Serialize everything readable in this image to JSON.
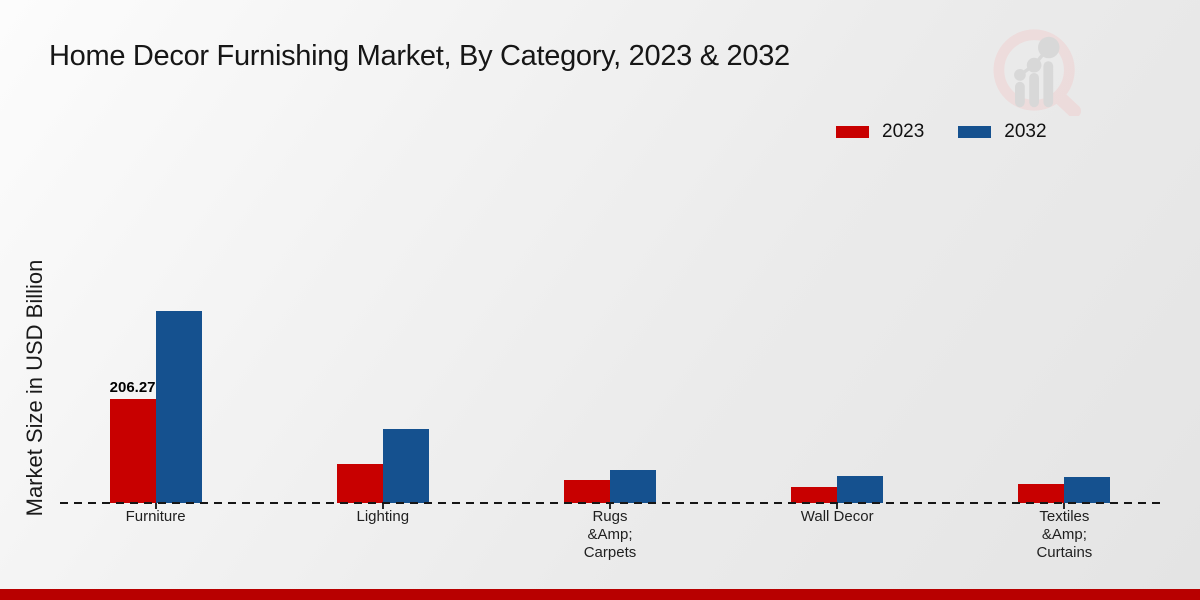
{
  "chart_data": {
    "type": "bar",
    "title": "Home Decor Furnishing Market, By Category, 2023 & 2032",
    "xlabel": "",
    "ylabel": "Market Size in USD Billion",
    "units": "USD Billion",
    "categories": [
      "Furniture",
      "Lighting",
      "Rugs &Amp; Carpets",
      "Wall Decor",
      "Textiles &Amp; Curtains"
    ],
    "category_label_lines": [
      [
        "Furniture"
      ],
      [
        "Lighting"
      ],
      [
        "Rugs",
        "&Amp;",
        "Carpets"
      ],
      [
        "Wall Decor"
      ],
      [
        "Textiles",
        "&Amp;",
        "Curtains"
      ]
    ],
    "series": [
      {
        "name": "2023",
        "color": "#c80000",
        "values": [
          206.27,
          77,
          46,
          32,
          38
        ],
        "bar_labels": [
          "206.27",
          "",
          "",
          "",
          ""
        ]
      },
      {
        "name": "2032",
        "color": "#15518f",
        "values": [
          381,
          147,
          65,
          54,
          52
        ],
        "bar_labels": [
          "",
          "",
          "",
          "",
          ""
        ]
      }
    ],
    "ylim": [
      0,
      780
    ],
    "grid": false,
    "y_tick_labels_shown": false,
    "legend_position": "upper right",
    "axis_style": "dashed-baseline-only"
  },
  "branding": {
    "logo_name": "magnifier-bar-chart-logo",
    "logo_glass_color": "#eed7d7",
    "logo_chart_color": "#d6d6d6",
    "footer_accent_color": "#b80000",
    "background_color": "#ececec"
  }
}
